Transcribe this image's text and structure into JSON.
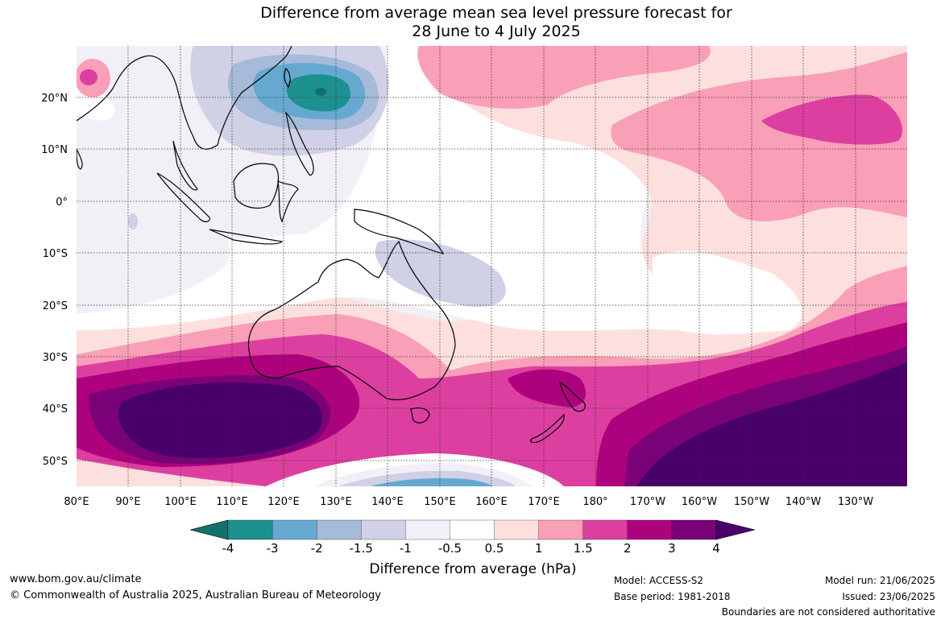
{
  "title_line1": "Difference from average mean sea level pressure forecast for",
  "title_line2": "28 June to 4 July 2025",
  "map": {
    "lon_labels": [
      "80°E",
      "90°E",
      "100°E",
      "110°E",
      "120°E",
      "130°E",
      "140°E",
      "150°E",
      "160°E",
      "170°E",
      "180°",
      "170°W",
      "160°W",
      "150°W",
      "140°W",
      "130°W"
    ],
    "lat_labels": [
      "20°N",
      "10°N",
      "0°",
      "10°S",
      "20°S",
      "30°S",
      "40°S",
      "50°S"
    ],
    "lon_range": [
      80,
      235
    ],
    "lat_range": [
      -55,
      30
    ]
  },
  "colorbar": {
    "label": "Difference from average (hPa)",
    "ticks": [
      "-4",
      "-3",
      "-2",
      "-1.5",
      "-1",
      "-0.5",
      "0.5",
      "1",
      "1.5",
      "2",
      "3",
      "4"
    ],
    "colors": [
      "#12716a",
      "#1c918f",
      "#66a9d0",
      "#a6bad9",
      "#d0d1e6",
      "#f2eff6",
      "#ffffff",
      "#fde0dd",
      "#f99fb7",
      "#dd3fa0",
      "#ae017e",
      "#7a0177",
      "#49006a"
    ]
  },
  "footer": {
    "url": "www.bom.gov.au/climate",
    "copyright": "© Commonwealth of Australia 2025, Australian Bureau of Meteorology",
    "model": "Model: ACCESS-S2",
    "base_period": "Base period: 1981-2018",
    "model_run": "Model run: 21/06/2025",
    "issued": "Issued: 23/06/2025",
    "disclaimer": "Boundaries are not considered authoritative"
  }
}
